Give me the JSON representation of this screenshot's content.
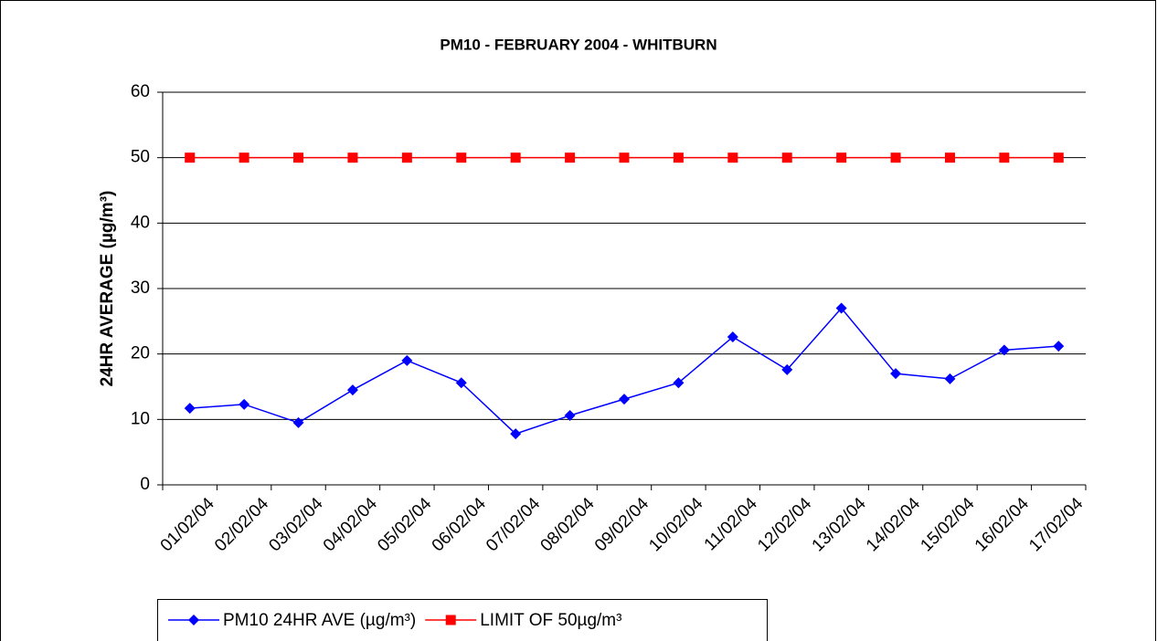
{
  "chart_data": {
    "type": "line",
    "title": "PM10 - FEBRUARY 2004 - WHITBURN",
    "y_label": "24HR AVERAGE (µg/m³)",
    "categories": [
      "01/02/04",
      "02/02/04",
      "03/02/04",
      "04/02/04",
      "05/02/04",
      "06/02/04",
      "07/02/04",
      "08/02/04",
      "09/02/04",
      "10/02/04",
      "11/02/04",
      "12/02/04",
      "13/02/04",
      "14/02/04",
      "15/02/04",
      "16/02/04",
      "17/02/04"
    ],
    "series": [
      {
        "name": "PM10 24HR AVE (µg/m³)",
        "color": "#0000ff",
        "marker": "diamond",
        "values": [
          11.7,
          12.3,
          9.5,
          14.5,
          19,
          15.6,
          7.8,
          10.6,
          13.1,
          15.6,
          22.6,
          17.6,
          27,
          17,
          16.2,
          20.6,
          21.2
        ]
      },
      {
        "name": "LIMIT OF 50µg/m³",
        "color": "#ff0000",
        "marker": "square",
        "values": [
          50,
          50,
          50,
          50,
          50,
          50,
          50,
          50,
          50,
          50,
          50,
          50,
          50,
          50,
          50,
          50,
          50
        ]
      }
    ],
    "ylim": [
      0,
      60
    ],
    "yticks": [
      0,
      10,
      20,
      30,
      40,
      50,
      60
    ],
    "grid": true,
    "legend": "bottom"
  }
}
